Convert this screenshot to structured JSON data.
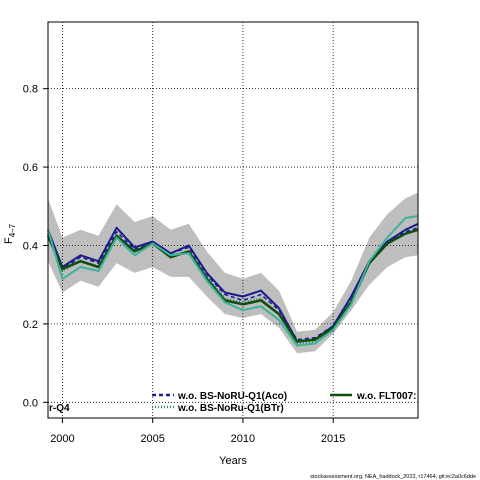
{
  "chart_data": {
    "type": "line",
    "ylabel_main": "F",
    "ylabel_sub": "4–7",
    "xlabel": "Years",
    "xlim": [
      1999.2,
      2019.7
    ],
    "ylim": [
      -0.04,
      0.97
    ],
    "grid": true,
    "x_ticks": [
      2000,
      2005,
      2010,
      2015
    ],
    "y_ticks": [
      0.0,
      0.2,
      0.4,
      0.6,
      0.8
    ],
    "x_tick_labels": [
      "2000",
      "2005",
      "2010",
      "2015"
    ],
    "y_tick_labels": [
      "0.0",
      "0.2",
      "0.4",
      "0.6",
      "0.8"
    ],
    "x": [
      1999.2,
      2000,
      2001,
      2002,
      2003,
      2004,
      2005,
      2006,
      2007,
      2008,
      2009,
      2010,
      2011,
      2012,
      2013,
      2014,
      2015,
      2016,
      2017,
      2018,
      2019,
      2019.7
    ],
    "band": {
      "color": "#bebebe",
      "lower": [
        0.36,
        0.28,
        0.31,
        0.295,
        0.355,
        0.33,
        0.345,
        0.32,
        0.32,
        0.27,
        0.225,
        0.215,
        0.225,
        0.19,
        0.125,
        0.13,
        0.175,
        0.235,
        0.3,
        0.345,
        0.37,
        0.375
      ],
      "upper": [
        0.52,
        0.42,
        0.44,
        0.425,
        0.505,
        0.46,
        0.475,
        0.44,
        0.455,
        0.385,
        0.33,
        0.315,
        0.33,
        0.285,
        0.18,
        0.185,
        0.23,
        0.31,
        0.42,
        0.48,
        0.52,
        0.535
      ]
    },
    "series": [
      {
        "key": "base_navy",
        "color": "#1a1a8c",
        "dash": "",
        "width": 2,
        "values": [
          0.44,
          0.345,
          0.375,
          0.36,
          0.445,
          0.395,
          0.41,
          0.38,
          0.4,
          0.33,
          0.28,
          0.27,
          0.285,
          0.24,
          0.155,
          0.16,
          0.195,
          0.27,
          0.36,
          0.41,
          0.44,
          0.455
        ]
      },
      {
        "key": "aco",
        "color": "#1a1aa0",
        "dash": "4,3",
        "width": 1.5,
        "values": [
          0.43,
          0.34,
          0.37,
          0.355,
          0.435,
          0.39,
          0.41,
          0.38,
          0.395,
          0.325,
          0.275,
          0.26,
          0.275,
          0.235,
          0.16,
          0.165,
          0.195,
          0.265,
          0.36,
          0.41,
          0.435,
          0.445
        ]
      },
      {
        "key": "btr",
        "color": "#2e8b57",
        "dash": "1,2",
        "width": 2,
        "values": [
          0.43,
          0.335,
          0.36,
          0.345,
          0.425,
          0.385,
          0.405,
          0.375,
          0.385,
          0.32,
          0.265,
          0.255,
          0.265,
          0.225,
          0.15,
          0.155,
          0.19,
          0.26,
          0.355,
          0.405,
          0.43,
          0.44
        ]
      },
      {
        "key": "flt007",
        "color": "#0f4d0f",
        "dash": "",
        "width": 2.5,
        "values": [
          0.425,
          0.34,
          0.36,
          0.345,
          0.425,
          0.385,
          0.405,
          0.37,
          0.385,
          0.315,
          0.26,
          0.25,
          0.26,
          0.225,
          0.155,
          0.16,
          0.19,
          0.255,
          0.355,
          0.405,
          0.43,
          0.44
        ]
      },
      {
        "key": "teal",
        "color": "#3cb39a",
        "dash": "",
        "width": 2,
        "values": [
          0.44,
          0.315,
          0.345,
          0.335,
          0.42,
          0.375,
          0.405,
          0.375,
          0.38,
          0.31,
          0.255,
          0.235,
          0.245,
          0.21,
          0.145,
          0.15,
          0.185,
          0.25,
          0.36,
          0.42,
          0.47,
          0.475
        ]
      }
    ],
    "legend": [
      {
        "label": "w.o. BS-NoRU-Q1(Aco)",
        "color": "#1a1aa0",
        "style": "dashed"
      },
      {
        "label": "w.o. BS-NoRu-Q1(BTr)",
        "color": "#2e8b57",
        "style": "dotted"
      },
      {
        "label": "w.o. FLT007:",
        "color": "#0f4d0f",
        "style": "solid"
      },
      {
        "label": "r-Q4",
        "color": "",
        "style": "none"
      }
    ]
  },
  "footer": "stockassessment.org, NEA_haddock_2023, r17464, git:ec2a0c6dde"
}
